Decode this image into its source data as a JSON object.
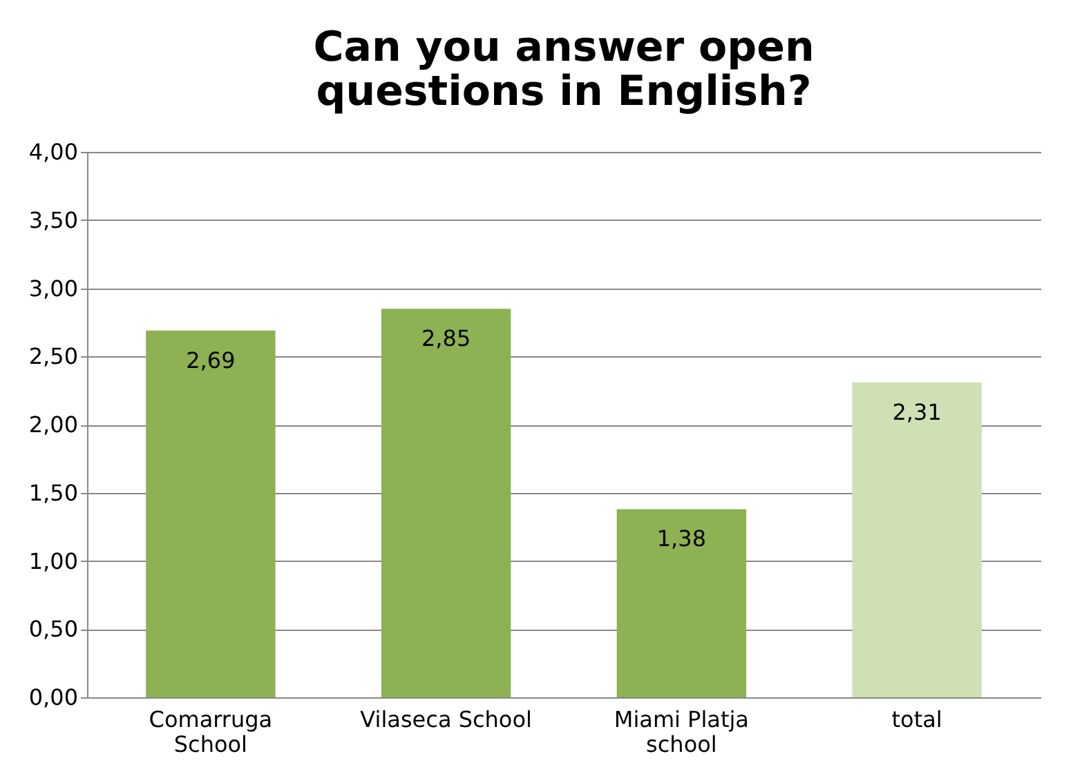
{
  "chart_data": {
    "type": "bar",
    "title": "Can you answer open\nquestions in English?",
    "categories": [
      "Comarruga\nSchool",
      "Vilaseca School",
      "Miami Platja\nschool",
      "total"
    ],
    "values": [
      2.69,
      2.85,
      1.38,
      2.31
    ],
    "colors": [
      "#8db153",
      "#8db153",
      "#8db153",
      "#cfe0b4"
    ],
    "value_labels": [
      "2,69",
      "2,85",
      "1,38",
      "2,31"
    ],
    "ylim": [
      0,
      4
    ],
    "yticks": [
      {
        "value": 0,
        "label": "0,00"
      },
      {
        "value": 0.5,
        "label": "0,50"
      },
      {
        "value": 1,
        "label": "1,00"
      },
      {
        "value": 1.5,
        "label": "1,50"
      },
      {
        "value": 2,
        "label": "2,00"
      },
      {
        "value": 2.5,
        "label": "2,50"
      },
      {
        "value": 3,
        "label": "3,00"
      },
      {
        "value": 3.5,
        "label": "3,50"
      },
      {
        "value": 4,
        "label": "4,00"
      }
    ],
    "grid": "y"
  }
}
